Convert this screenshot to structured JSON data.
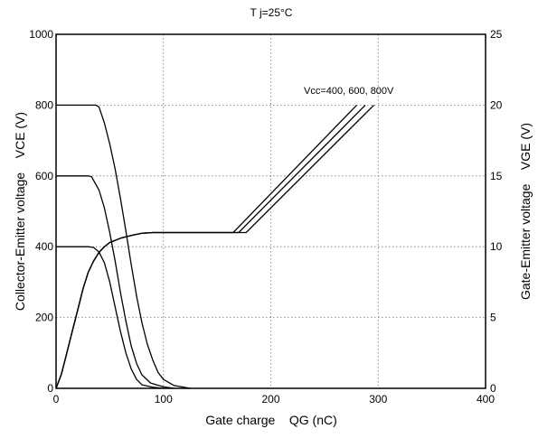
{
  "chart_data": {
    "type": "line",
    "title": "T j=25°C",
    "xlabel": "Gate charge    QG (nC)",
    "ylabel_left": "Collector-Emitter voltage    VCE (V)",
    "ylabel_right": "Gate-Emitter voltage    VGE (V)",
    "annotation": "Vcc=400, 600, 800V",
    "x_axis": {
      "min": 0,
      "max": 400,
      "ticks": [
        0,
        100,
        200,
        300,
        400
      ],
      "tick_labels": [
        "0",
        "100",
        "200",
        "300",
        "400"
      ]
    },
    "y_left": {
      "min": 0,
      "max": 1000,
      "ticks": [
        0,
        200,
        400,
        600,
        800,
        1000
      ],
      "tick_labels": [
        "0",
        "200",
        "400",
        "600",
        "800",
        "1000"
      ]
    },
    "y_right": {
      "min": 0,
      "max": 25,
      "ticks": [
        0,
        5,
        10,
        15,
        20,
        25
      ],
      "tick_labels": [
        "0",
        "5",
        "10",
        "15",
        "20",
        "25"
      ]
    },
    "grid": true,
    "series": [
      {
        "axis": "left",
        "points": [
          [
            0,
            400
          ],
          [
            30,
            400
          ],
          [
            35,
            398
          ],
          [
            40,
            385
          ],
          [
            45,
            355
          ],
          [
            50,
            300
          ],
          [
            55,
            230
          ],
          [
            60,
            160
          ],
          [
            65,
            100
          ],
          [
            70,
            55
          ],
          [
            75,
            25
          ],
          [
            80,
            10
          ],
          [
            90,
            3
          ],
          [
            100,
            0
          ]
        ]
      },
      {
        "axis": "left",
        "points": [
          [
            0,
            600
          ],
          [
            30,
            600
          ],
          [
            33,
            598
          ],
          [
            40,
            560
          ],
          [
            45,
            510
          ],
          [
            50,
            440
          ],
          [
            55,
            360
          ],
          [
            60,
            270
          ],
          [
            65,
            190
          ],
          [
            70,
            120
          ],
          [
            75,
            70
          ],
          [
            80,
            38
          ],
          [
            88,
            15
          ],
          [
            100,
            4
          ],
          [
            110,
            0
          ]
        ]
      },
      {
        "axis": "left",
        "points": [
          [
            0,
            800
          ],
          [
            37,
            800
          ],
          [
            40,
            795
          ],
          [
            45,
            750
          ],
          [
            50,
            690
          ],
          [
            55,
            620
          ],
          [
            60,
            535
          ],
          [
            65,
            445
          ],
          [
            70,
            350
          ],
          [
            75,
            260
          ],
          [
            80,
            185
          ],
          [
            85,
            125
          ],
          [
            90,
            80
          ],
          [
            95,
            45
          ],
          [
            100,
            25
          ],
          [
            110,
            8
          ],
          [
            125,
            0
          ]
        ]
      },
      {
        "axis": "right",
        "points": [
          [
            0,
            0
          ],
          [
            5,
            1
          ],
          [
            10,
            2.5
          ],
          [
            15,
            4
          ],
          [
            20,
            5.5
          ],
          [
            25,
            7
          ],
          [
            30,
            8.2
          ],
          [
            35,
            9
          ],
          [
            40,
            9.6
          ],
          [
            45,
            10
          ],
          [
            50,
            10.3
          ],
          [
            60,
            10.6
          ],
          [
            70,
            10.8
          ],
          [
            80,
            10.95
          ],
          [
            90,
            11
          ],
          [
            165,
            11
          ],
          [
            280,
            20
          ]
        ]
      },
      {
        "axis": "right",
        "points": [
          [
            0,
            0
          ],
          [
            5,
            1
          ],
          [
            10,
            2.5
          ],
          [
            15,
            4
          ],
          [
            20,
            5.5
          ],
          [
            25,
            7
          ],
          [
            30,
            8.2
          ],
          [
            35,
            9
          ],
          [
            40,
            9.6
          ],
          [
            45,
            10
          ],
          [
            50,
            10.3
          ],
          [
            60,
            10.6
          ],
          [
            70,
            10.8
          ],
          [
            80,
            10.95
          ],
          [
            90,
            11
          ],
          [
            170,
            11
          ],
          [
            288,
            20
          ]
        ]
      },
      {
        "axis": "right",
        "points": [
          [
            0,
            0
          ],
          [
            5,
            1
          ],
          [
            10,
            2.5
          ],
          [
            15,
            4
          ],
          [
            20,
            5.5
          ],
          [
            25,
            7
          ],
          [
            30,
            8.2
          ],
          [
            35,
            9
          ],
          [
            40,
            9.6
          ],
          [
            45,
            10
          ],
          [
            50,
            10.3
          ],
          [
            60,
            10.6
          ],
          [
            70,
            10.8
          ],
          [
            80,
            10.95
          ],
          [
            90,
            11
          ],
          [
            177,
            11
          ],
          [
            296,
            20
          ]
        ]
      }
    ]
  }
}
